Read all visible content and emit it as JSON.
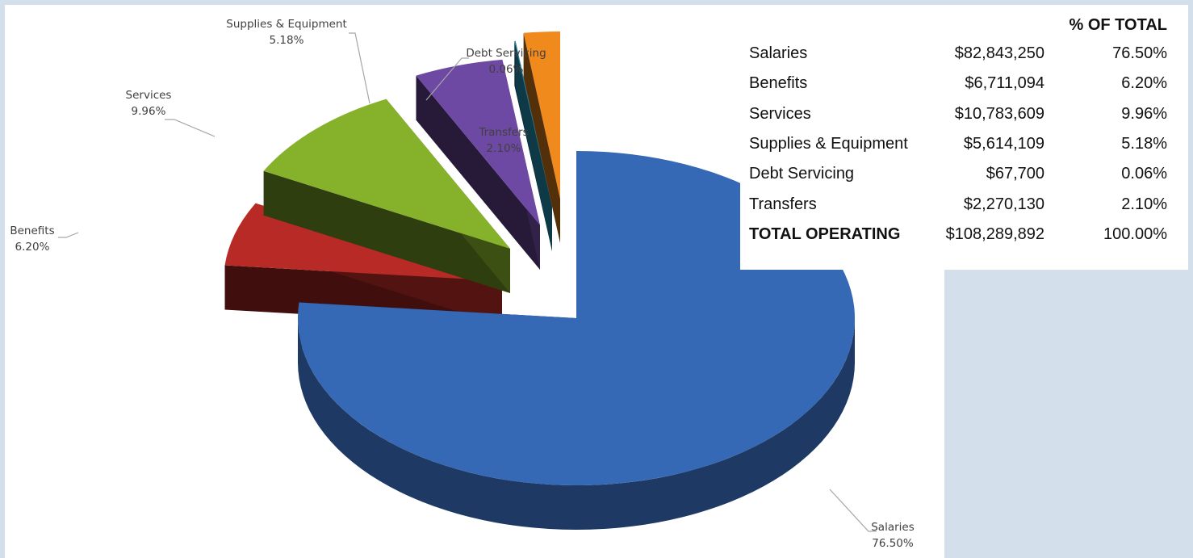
{
  "chart_data": {
    "type": "pie",
    "title": "",
    "slices": [
      {
        "label": "Salaries",
        "value": 76.5,
        "display": "76.50%",
        "color": "#3568b5"
      },
      {
        "label": "Benefits",
        "value": 6.2,
        "display": "6.20%",
        "color": "#b82a26"
      },
      {
        "label": "Services",
        "value": 9.96,
        "display": "9.96%",
        "color": "#86b22b"
      },
      {
        "label": "Supplies & Equipment",
        "value": 5.18,
        "display": "5.18%",
        "color": "#6e49a3"
      },
      {
        "label": "Debt Servicing",
        "value": 0.06,
        "display": "0.06%",
        "color": "#1f7f9c"
      },
      {
        "label": "Transfers",
        "value": 2.1,
        "display": "2.10%",
        "color": "#f08a1c"
      }
    ],
    "exploded": true,
    "three_d": true
  },
  "table": {
    "header_pct": "% OF TOTAL",
    "rows": [
      {
        "name": "Salaries",
        "amount": "$82,843,250",
        "pct": "76.50%"
      },
      {
        "name": "Benefits",
        "amount": "$6,711,094",
        "pct": "6.20%"
      },
      {
        "name": "Services",
        "amount": "$10,783,609",
        "pct": "9.96%"
      },
      {
        "name": "Supplies & Equipment",
        "amount": "$5,614,109",
        "pct": "5.18%"
      },
      {
        "name": "Debt Servicing",
        "amount": "$67,700",
        "pct": "0.06%"
      },
      {
        "name": "Transfers",
        "amount": "$2,270,130",
        "pct": "2.10%"
      }
    ],
    "total": {
      "name": "TOTAL OPERATING",
      "amount": "$108,289,892",
      "pct": "100.00%"
    }
  }
}
